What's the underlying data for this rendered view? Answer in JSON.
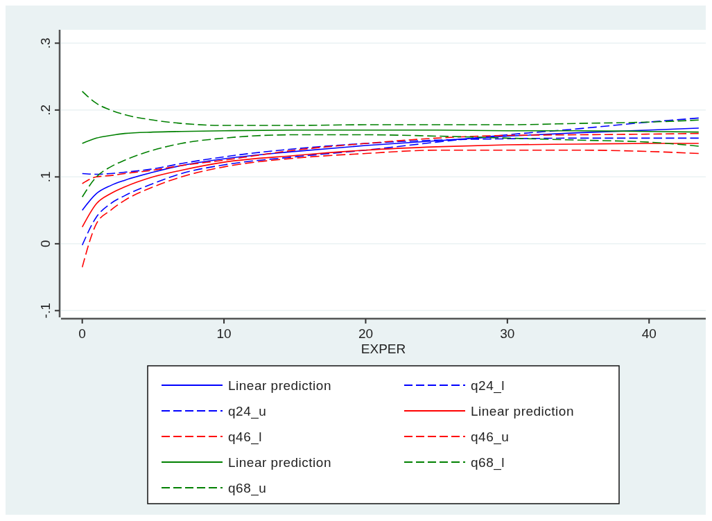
{
  "chart_data": {
    "type": "line",
    "xlabel": "EXPER",
    "xlim": [
      -1.5,
      44
    ],
    "xticks": [
      0,
      10,
      20,
      30,
      40
    ],
    "ylim": [
      -0.11,
      0.32
    ],
    "yticks": [
      {
        "value": -0.1,
        "label": "-.1"
      },
      {
        "value": 0,
        "label": "0"
      },
      {
        "value": 0.1,
        "label": ".1"
      },
      {
        "value": 0.2,
        "label": ".2"
      },
      {
        "value": 0.3,
        "label": ".3"
      }
    ],
    "grid": "y",
    "legend": "bottom",
    "x": [
      0,
      1,
      2,
      3,
      5,
      7,
      10,
      15,
      20,
      25,
      30,
      35,
      40,
      43.5
    ],
    "series": [
      {
        "name": "Linear prediction",
        "color": "#0000ff",
        "line_style": "solid",
        "values": [
          0.05,
          0.075,
          0.087,
          0.095,
          0.107,
          0.117,
          0.127,
          0.138,
          0.147,
          0.154,
          0.161,
          0.166,
          0.17,
          0.173
        ]
      },
      {
        "name": "q24_l",
        "color": "#0000ff",
        "line_style": "dashed",
        "values": [
          -0.002,
          0.04,
          0.06,
          0.072,
          0.09,
          0.105,
          0.118,
          0.13,
          0.14,
          0.152,
          0.163,
          0.172,
          0.182,
          0.188
        ]
      },
      {
        "name": "q24_u",
        "color": "#0000ff",
        "line_style": "dashed",
        "values": [
          0.105,
          0.104,
          0.105,
          0.107,
          0.112,
          0.12,
          0.13,
          0.142,
          0.15,
          0.155,
          0.157,
          0.158,
          0.158,
          0.158
        ]
      },
      {
        "name": "Linear prediction",
        "color": "#ff0000",
        "line_style": "solid",
        "values": [
          0.025,
          0.06,
          0.075,
          0.085,
          0.1,
          0.11,
          0.122,
          0.132,
          0.14,
          0.145,
          0.148,
          0.149,
          0.15,
          0.15
        ]
      },
      {
        "name": "q46_l",
        "color": "#ff0000",
        "line_style": "dashed",
        "values": [
          -0.035,
          0.03,
          0.05,
          0.065,
          0.085,
          0.1,
          0.115,
          0.128,
          0.135,
          0.14,
          0.14,
          0.14,
          0.138,
          0.135
        ]
      },
      {
        "name": "q46_u",
        "color": "#ff0000",
        "line_style": "dashed",
        "values": [
          0.09,
          0.1,
          0.102,
          0.105,
          0.11,
          0.117,
          0.125,
          0.14,
          0.15,
          0.158,
          0.162,
          0.163,
          0.164,
          0.165
        ]
      },
      {
        "name": "Linear prediction",
        "color": "#008000",
        "line_style": "solid",
        "values": [
          0.15,
          0.158,
          0.162,
          0.165,
          0.167,
          0.168,
          0.169,
          0.17,
          0.17,
          0.17,
          0.169,
          0.169,
          0.168,
          0.167
        ]
      },
      {
        "name": "q68_l",
        "color": "#008000",
        "line_style": "dashed",
        "values": [
          0.07,
          0.1,
          0.115,
          0.125,
          0.14,
          0.15,
          0.158,
          0.163,
          0.163,
          0.161,
          0.158,
          0.155,
          0.152,
          0.146
        ]
      },
      {
        "name": "q68_u",
        "color": "#008000",
        "line_style": "dashed",
        "values": [
          0.228,
          0.21,
          0.2,
          0.193,
          0.185,
          0.18,
          0.177,
          0.177,
          0.178,
          0.178,
          0.178,
          0.18,
          0.182,
          0.185
        ]
      }
    ]
  }
}
